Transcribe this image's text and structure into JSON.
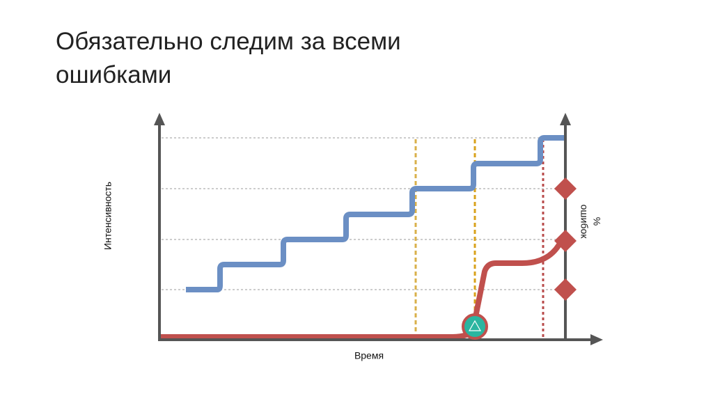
{
  "title_lines": [
    "Обязательно следим за всеми",
    "ошибками"
  ],
  "y_axis_label": "Интенсивность",
  "x_axis_label": "Время",
  "right_axis_label_lines": [
    "%",
    "ошибок"
  ]
}
